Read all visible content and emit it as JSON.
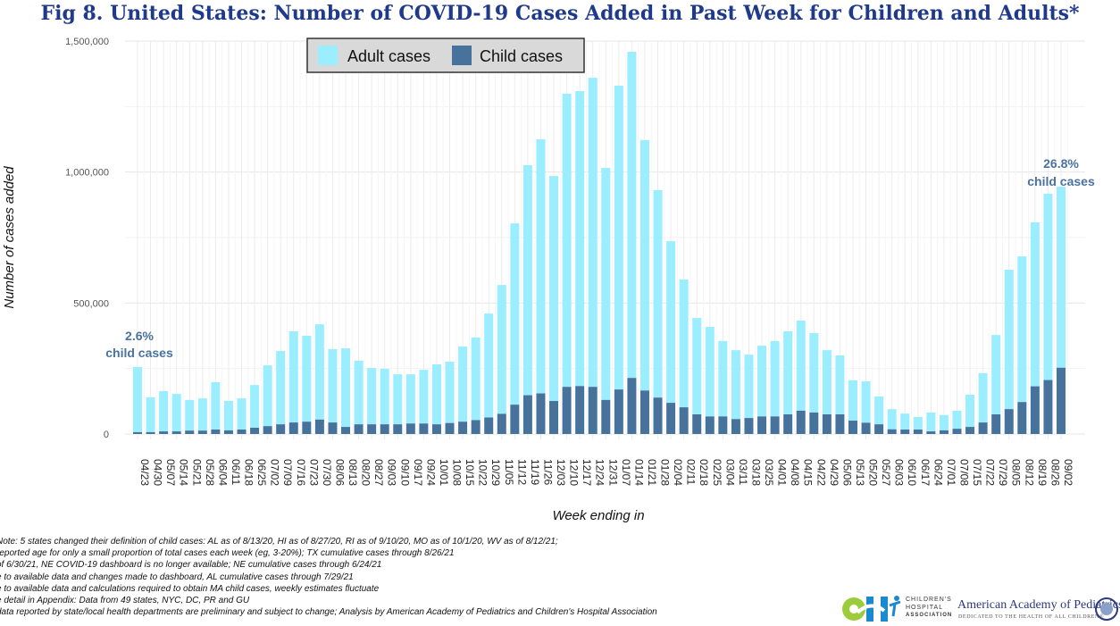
{
  "chart_data": {
    "type": "bar",
    "stacked": true,
    "title": "Fig 8. United States: Number of COVID-19 Cases Added in Past Week for Children and Adults*",
    "xlabel": "Week ending in",
    "ylabel": "Number of cases added",
    "ylim": [
      0,
      1500000
    ],
    "yticks": [
      0,
      500000,
      1000000,
      1500000
    ],
    "ytick_labels": [
      "0",
      "500,000",
      "1,000,000",
      "1,500,000"
    ],
    "grid": true,
    "legend_placement": "top-left",
    "categories": [
      "04/23",
      "04/30",
      "05/07",
      "05/14",
      "05/21",
      "05/28",
      "06/04",
      "06/11",
      "06/18",
      "06/25",
      "07/02",
      "07/09",
      "07/16",
      "07/23",
      "07/30",
      "08/06",
      "08/13",
      "08/20",
      "08/27",
      "09/03",
      "09/10",
      "09/17",
      "09/24",
      "10/01",
      "10/08",
      "10/15",
      "10/22",
      "10/29",
      "11/05",
      "11/12",
      "11/19",
      "11/26",
      "12/03",
      "12/10",
      "12/17",
      "12/24",
      "12/31",
      "01/07",
      "01/14",
      "01/21",
      "01/28",
      "02/04",
      "02/11",
      "02/18",
      "02/25",
      "03/04",
      "03/11",
      "03/18",
      "03/25",
      "04/01",
      "04/08",
      "04/15",
      "04/22",
      "04/29",
      "05/06",
      "05/13",
      "05/20",
      "05/27",
      "06/03",
      "06/10",
      "06/17",
      "06/24",
      "07/01",
      "07/08",
      "07/15",
      "07/22",
      "07/29",
      "08/05",
      "08/12",
      "08/19",
      "08/26",
      "09/02"
    ],
    "series": [
      {
        "name": "Child cases",
        "color": "#46729c",
        "values": [
          7000,
          7000,
          10000,
          10000,
          13000,
          13000,
          17000,
          14000,
          17000,
          24000,
          30000,
          37000,
          44000,
          47000,
          55000,
          44000,
          27000,
          37000,
          37000,
          37000,
          37000,
          40000,
          40000,
          37000,
          42000,
          47000,
          53000,
          63000,
          77000,
          112000,
          148000,
          155000,
          126000,
          180000,
          183000,
          180000,
          130000,
          170000,
          214000,
          166000,
          139000,
          119000,
          102000,
          75000,
          67000,
          67000,
          57000,
          61000,
          67000,
          67000,
          75000,
          89000,
          82000,
          75000,
          75000,
          51000,
          43000,
          37000,
          18000,
          17000,
          17000,
          10000,
          14000,
          20000,
          27000,
          44000,
          75000,
          95000,
          122000,
          182000,
          206000,
          253000
        ]
      },
      {
        "name": "Adult cases",
        "color": "#9beeff",
        "values": [
          249000,
          133000,
          154000,
          143000,
          117000,
          123000,
          181000,
          112000,
          119000,
          163000,
          232000,
          280000,
          348000,
          328000,
          364000,
          280000,
          300000,
          243000,
          215000,
          212000,
          191000,
          188000,
          205000,
          229000,
          234000,
          287000,
          315000,
          397000,
          492000,
          692000,
          878000,
          970000,
          859000,
          1119000,
          1126000,
          1180000,
          886000,
          1160000,
          1245000,
          956000,
          792000,
          617000,
          488000,
          368000,
          342000,
          288000,
          263000,
          242000,
          270000,
          288000,
          317000,
          344000,
          303000,
          245000,
          225000,
          154000,
          158000,
          106000,
          77000,
          61000,
          48000,
          72000,
          58000,
          69000,
          123000,
          188000,
          303000,
          532000,
          556000,
          626000,
          711000,
          691000
        ]
      }
    ],
    "annotations": [
      {
        "text1": "2.6%",
        "text2": "child cases",
        "category": "04/23"
      },
      {
        "text1": "26.8%",
        "text2": "child cases",
        "category": "09/02"
      }
    ]
  },
  "notes": [
    "Note: 5 states changed their definition of child cases: AL as of 8/13/20, HI as of 8/27/20, RI as of 9/10/20, MO as of 10/1/20, WV as of 8/12/21;",
    "reported age for only a small proportion of total cases each week (eg, 3-20%); TX cumulative cases through 8/26/21",
    "of 6/30/21, NE COVID-19 dashboard is no longer available; NE cumulative cases through 6/24/21",
    "e to available data and changes made to dashboard, AL cumulative cases through 7/29/21",
    "e to available data and calculations required to obtain MA child cases, weekly estimates fluctuate",
    "e detail in Appendix: Data from 49 states, NYC, DC, PR and GU",
    "data reported by state/local health departments are preliminary and subject to change; Analysis by American Academy of Pediatrics and Children's Hospital Association"
  ],
  "logos": {
    "cha": [
      "CHILDREN'S",
      "HOSPITAL",
      "ASSOCIATION"
    ],
    "aap": "American Academy of Pediatrics",
    "aap_tagline": "DEDICATED TO THE HEALTH OF ALL CHILDREN®"
  }
}
